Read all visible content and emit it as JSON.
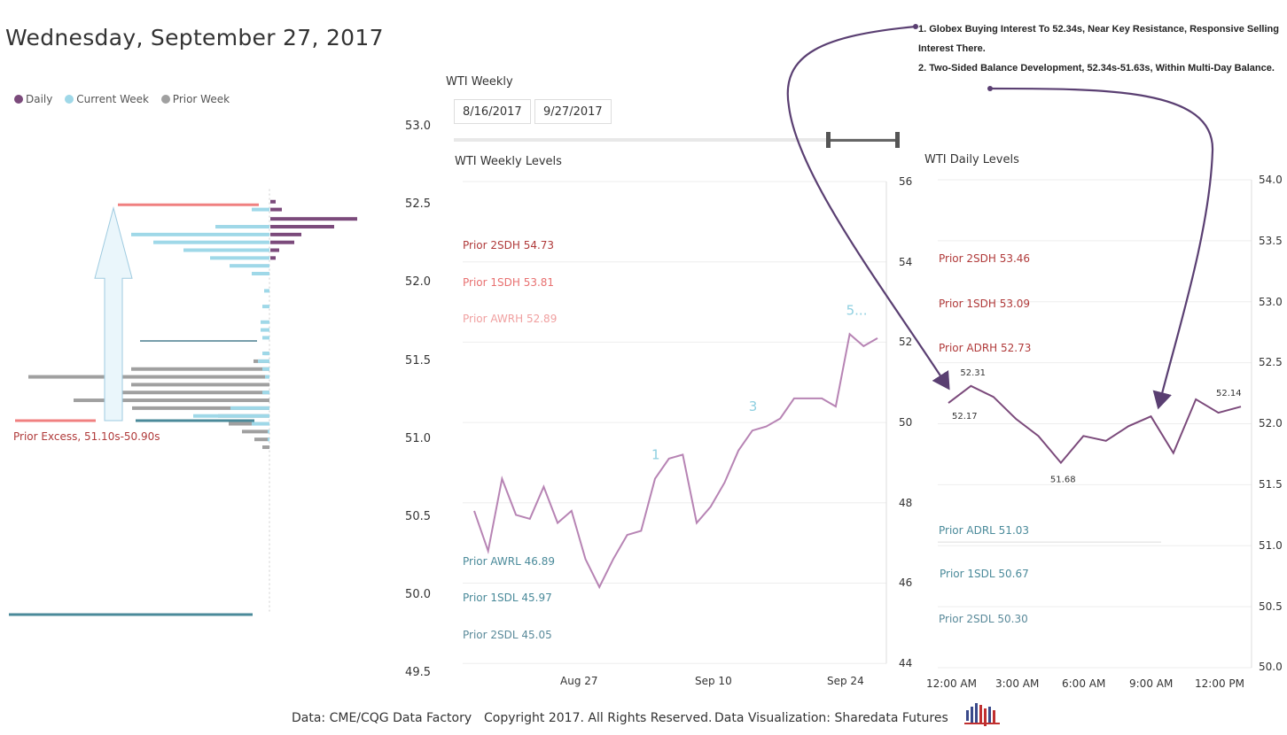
{
  "header": {
    "title": "Wednesday, September 27, 2017"
  },
  "profile_legend": [
    {
      "label": "Daily",
      "color": "#7b4a7b"
    },
    {
      "label": "Current Week",
      "color": "#9fd8e8"
    },
    {
      "label": "Prior Week",
      "color": "#a0a0a0"
    }
  ],
  "profile": {
    "price_ticks": [
      "53.0",
      "52.5",
      "52.0",
      "51.5",
      "51.0",
      "50.5",
      "50.0",
      "49.5"
    ],
    "prior_excess_label": "Prior Excess, 51.10s-50.90s"
  },
  "weekly_panel": {
    "title": "WTI Weekly",
    "date_start": "8/16/2017",
    "date_end": "9/27/2017",
    "chart_title": "WTI Weekly Levels",
    "levels": [
      {
        "label": "Prior 2SDH 54.73",
        "color": "#b03a3a"
      },
      {
        "label": "Prior 1SDH 53.81",
        "color": "#e87070"
      },
      {
        "label": "Prior AWRH 52.89",
        "color": "#f0a0a0"
      },
      {
        "label": "Prior AWRL 46.89",
        "color": "#4a8a9a"
      },
      {
        "label": "Prior 1SDL 45.97",
        "color": "#4a8a9a"
      },
      {
        "label": "Prior 2SDL 45.05",
        "color": "#5a8a9a"
      }
    ],
    "y_ticks": [
      "56",
      "54",
      "52",
      "50",
      "48",
      "46",
      "44"
    ],
    "x_ticks": [
      "Aug 27",
      "Sep 10",
      "Sep 24"
    ],
    "wave_labels": [
      "1",
      "3",
      "5..."
    ]
  },
  "daily_panel": {
    "chart_title": "WTI Daily Levels",
    "levels": [
      {
        "label": "Prior 2SDH 53.46",
        "color": "#b03a3a"
      },
      {
        "label": "Prior 1SDH 53.09",
        "color": "#b03a3a"
      },
      {
        "label": "Prior ADRH 52.73",
        "color": "#b03a3a"
      },
      {
        "label": "Prior ADRL 51.03",
        "color": "#4a8a9a"
      },
      {
        "label": "Prior 1SDL 50.67",
        "color": "#4a8a9a"
      },
      {
        "label": "Prior 2SDL 50.30",
        "color": "#5a8a9a"
      }
    ],
    "y_ticks": [
      "54.0",
      "53.5",
      "53.0",
      "52.5",
      "52.0",
      "51.5",
      "51.0",
      "50.5",
      "50.0"
    ],
    "x_ticks": [
      "12:00 AM",
      "3:00 AM",
      "6:00 AM",
      "9:00 AM",
      "12:00 PM"
    ],
    "point_labels": [
      "52.17",
      "52.31",
      "51.68",
      "52.14"
    ]
  },
  "notes": {
    "line1": "1. Globex Buying Interest To 52.34s, Near Key Resistance, Responsive Selling Interest There.",
    "line2": "2. Two-Sided Balance Development, 52.34s-51.63s, Within Multi-Day Balance."
  },
  "footer": {
    "source": "Data: CME/CQG Data Factory",
    "copyright": "Copyright 2017. All Rights Reserved.",
    "credit": "Data Visualization: Sharedata Futures"
  },
  "chart_data": [
    {
      "type": "bar",
      "title": "",
      "orientation": "horizontal",
      "y": [
        52.6,
        52.55,
        52.5,
        52.45,
        52.4,
        52.35,
        52.3,
        52.25,
        52.2,
        52.15,
        52.1,
        52.05,
        52.0,
        51.95,
        51.9,
        51.85,
        51.8,
        51.75,
        51.7,
        51.65,
        51.6,
        51.55,
        51.5,
        51.45,
        51.4,
        51.35,
        51.3,
        51.25,
        51.2,
        51.15,
        51.1,
        51.05,
        51.0,
        50.95,
        50.9,
        50.85,
        50.8,
        50.75,
        50.7,
        50.65,
        50.6,
        50.55,
        50.5,
        50.45,
        50.4,
        50.35,
        50.3,
        50.25,
        50.2,
        50.15,
        50.1,
        50.05,
        50.0,
        49.95,
        49.9
      ],
      "series": [
        {
          "name": "Daily",
          "color": "#7b4a7b",
          "values": [
            0,
            0,
            0,
            0,
            0,
            0,
            0,
            0,
            0,
            0,
            0,
            0,
            0,
            0,
            0,
            0,
            0,
            0,
            0,
            0,
            0,
            0,
            0,
            0,
            0,
            0,
            0,
            0,
            0,
            0,
            0,
            0,
            0,
            0,
            0,
            0,
            0,
            0,
            0,
            0,
            0,
            0,
            0,
            0,
            0,
            0,
            0,
            0,
            0,
            0,
            0,
            0,
            0,
            0,
            0
          ],
          "levels": [
            52.52,
            52.47,
            52.41,
            52.36,
            52.31,
            52.26,
            52.21,
            52.16,
            52.11,
            52.06,
            52.01
          ],
          "widths": [
            6,
            13,
            98,
            72,
            35,
            27,
            10,
            6,
            0,
            0,
            0
          ]
        },
        {
          "name": "Current Week",
          "color": "#9fd8e8",
          "levels": [
            52.47,
            52.36,
            52.31,
            52.26,
            52.21,
            52.16,
            52.11,
            52.06,
            51.95,
            51.85,
            51.75,
            51.7,
            51.65,
            51.55,
            51.5,
            51.45,
            51.4,
            51.3,
            51.2,
            51.15,
            51.1,
            51.05,
            51.0
          ],
          "widths": [
            20,
            61,
            156,
            131,
            97,
            67,
            45,
            20,
            6,
            8,
            10,
            10,
            8,
            8,
            13,
            8,
            5,
            8,
            44,
            86,
            20,
            2,
            2
          ]
        },
        {
          "name": "Prior Week",
          "color": "#a0a0a0",
          "levels": [
            51.55,
            51.5,
            51.45,
            51.4,
            51.35,
            51.3,
            51.25,
            51.2,
            51.15,
            51.1,
            51.05,
            51.0,
            50.95,
            50.9,
            50.85,
            50.8,
            50.75,
            50.7,
            50.65
          ],
          "widths": [
            6,
            18,
            156,
            272,
            156,
            185,
            221,
            155,
            58,
            46,
            31,
            17,
            8,
            0,
            0,
            0,
            0,
            0,
            0
          ]
        }
      ]
    },
    {
      "type": "line",
      "title": "WTI Weekly Levels",
      "ylim": [
        44,
        56
      ],
      "x": [
        "Aug 16",
        "Aug 17",
        "Aug 18",
        "Aug 21",
        "Aug 22",
        "Aug 23",
        "Aug 24",
        "Aug 25",
        "Aug 28",
        "Aug 29",
        "Aug 30",
        "Aug 31",
        "Sep 1",
        "Sep 5",
        "Sep 6",
        "Sep 7",
        "Sep 8",
        "Sep 11",
        "Sep 12",
        "Sep 13",
        "Sep 14",
        "Sep 15",
        "Sep 18",
        "Sep 19",
        "Sep 20",
        "Sep 21",
        "Sep 22",
        "Sep 25",
        "Sep 26",
        "Sep 27"
      ],
      "series": [
        {
          "name": "WTI",
          "color": "#b784b4",
          "values": [
            47.8,
            46.8,
            48.6,
            47.7,
            47.6,
            48.4,
            47.5,
            47.8,
            46.6,
            45.9,
            46.6,
            47.2,
            47.3,
            48.6,
            49.1,
            49.2,
            47.5,
            47.9,
            48.5,
            49.3,
            49.8,
            49.9,
            50.1,
            50.6,
            50.6,
            50.6,
            50.4,
            52.2,
            51.9,
            52.1
          ]
        }
      ]
    },
    {
      "type": "line",
      "title": "WTI Daily Levels",
      "ylim": [
        50.0,
        54.0
      ],
      "x": [
        "12:00 AM",
        "1:00 AM",
        "2:00 AM",
        "3:00 AM",
        "4:00 AM",
        "5:00 AM",
        "6:00 AM",
        "7:00 AM",
        "8:00 AM",
        "9:00 AM",
        "10:00 AM",
        "11:00 AM",
        "12:00 PM",
        "1:00 PM"
      ],
      "series": [
        {
          "name": "WTI",
          "color": "#7b4a7b",
          "values": [
            52.17,
            52.31,
            52.22,
            52.04,
            51.9,
            51.68,
            51.9,
            51.86,
            51.98,
            52.06,
            51.76,
            52.2,
            52.09,
            52.14
          ]
        }
      ]
    }
  ]
}
